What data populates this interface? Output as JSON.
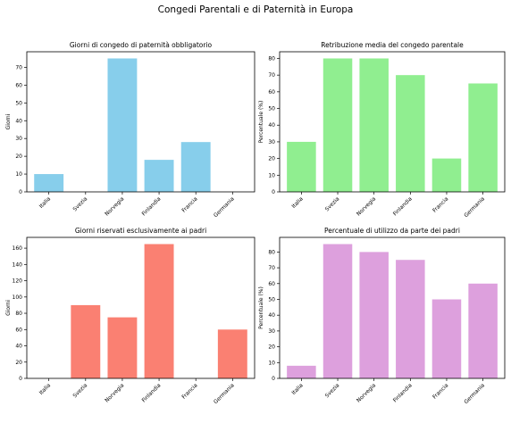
{
  "suptitle": "Congedi Parentali e di Paternità in Europa",
  "chart_data": [
    {
      "type": "bar",
      "title": "Giorni di congedo di paternità obbligatorio",
      "xlabel": "",
      "ylabel": "Giorni",
      "categories": [
        "Italia",
        "Svezia",
        "Norvegia",
        "Finlandia",
        "Francia",
        "Germania"
      ],
      "values": [
        10,
        0,
        75,
        18,
        28,
        0
      ],
      "ylim": [
        0,
        78.75
      ],
      "yticks": [
        0,
        10,
        20,
        30,
        40,
        50,
        60,
        70
      ],
      "color": "#87CEEB"
    },
    {
      "type": "bar",
      "title": "Retribuzione media del congedo parentale",
      "xlabel": "",
      "ylabel": "Percentuale (%)",
      "categories": [
        "Italia",
        "Svezia",
        "Norvegia",
        "Finlandia",
        "Francia",
        "Germania"
      ],
      "values": [
        30,
        80,
        80,
        70,
        20,
        65
      ],
      "ylim": [
        0,
        84
      ],
      "yticks": [
        0,
        10,
        20,
        30,
        40,
        50,
        60,
        70,
        80
      ],
      "color": "#90EE90"
    },
    {
      "type": "bar",
      "title": "Giorni riservati esclusivamente ai padri",
      "xlabel": "",
      "ylabel": "Giorni",
      "categories": [
        "Italia",
        "Svezia",
        "Norvegia",
        "Finlandia",
        "Francia",
        "Germania"
      ],
      "values": [
        0,
        90,
        75,
        165,
        0,
        60
      ],
      "ylim": [
        0,
        173.25
      ],
      "yticks": [
        0,
        20,
        40,
        60,
        80,
        100,
        120,
        140,
        160
      ],
      "color": "#FA8072"
    },
    {
      "type": "bar",
      "title": "Percentuale di utilizzo da parte dei padri",
      "xlabel": "",
      "ylabel": "Percentuale (%)",
      "categories": [
        "Italia",
        "Svezia",
        "Norvegia",
        "Finlandia",
        "Francia",
        "Germania"
      ],
      "values": [
        8,
        85,
        80,
        75,
        50,
        60
      ],
      "ylim": [
        0,
        89.25
      ],
      "yticks": [
        0,
        10,
        20,
        30,
        40,
        50,
        60,
        70,
        80
      ],
      "color": "#DDA0DD"
    }
  ]
}
